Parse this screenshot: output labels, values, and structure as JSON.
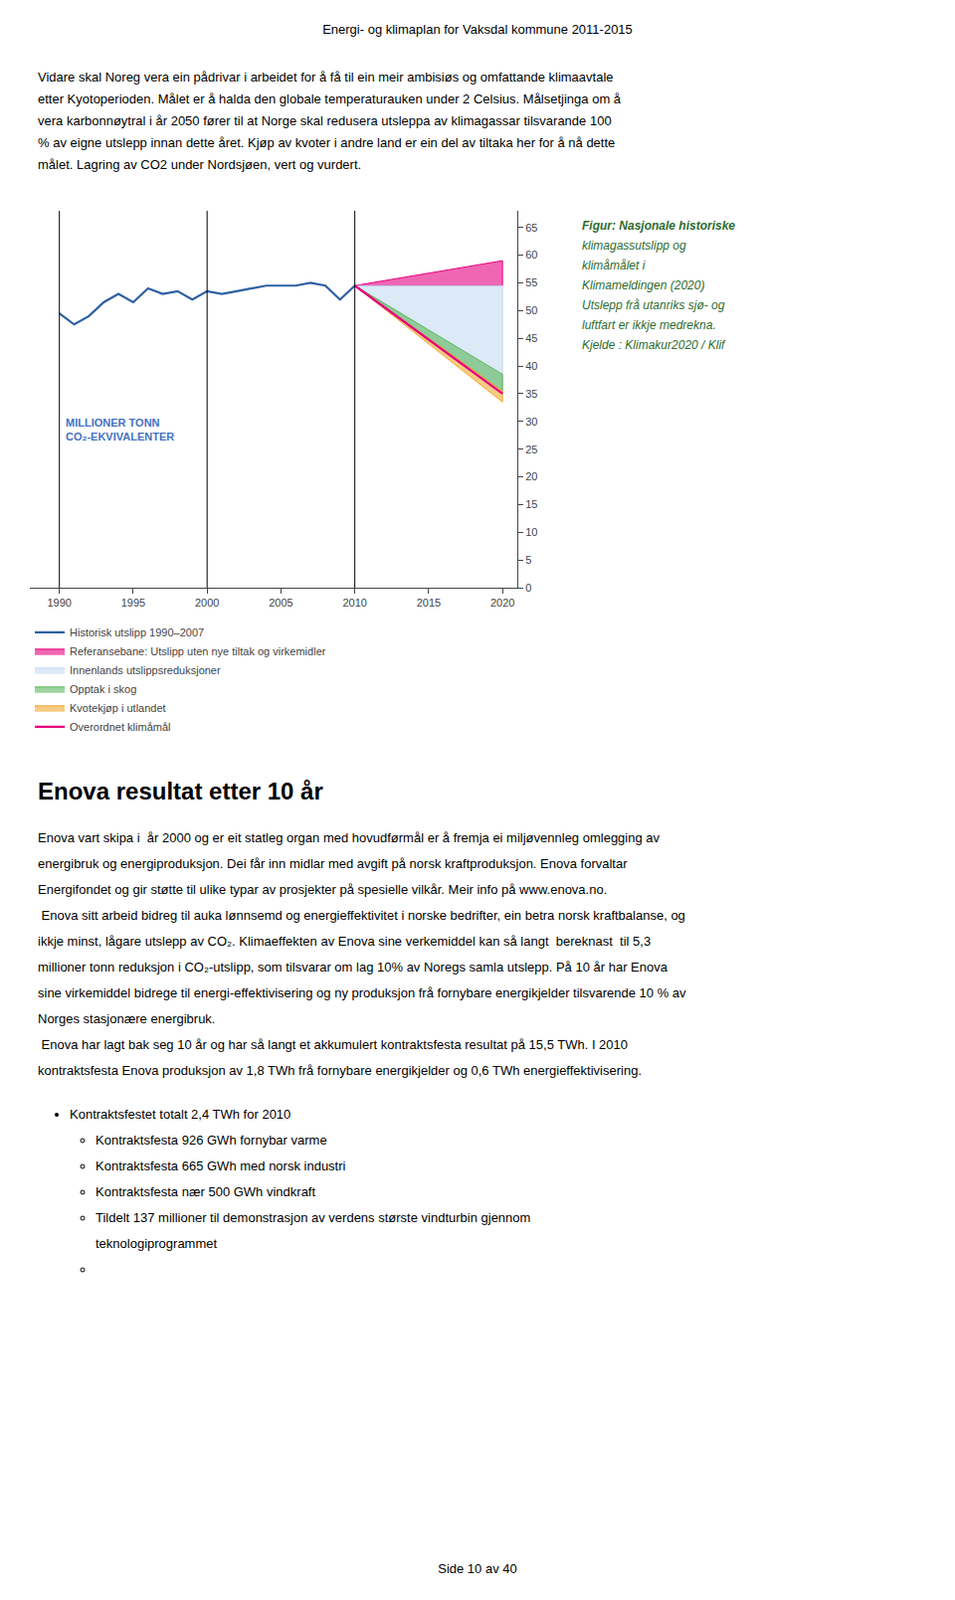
{
  "page_title": "Energi- og klimaplan for Vaksdal kommune 2011-2015",
  "paragraph_lines": [
    "Vidare skal Noreg vera ein pådrivar i arbeidet for å få til ein meir ambisiøs og omfattande klimaavtale",
    "etter Kyotoperioden. Målet er å halda den globale temperaturauken under 2 Celsius. Målsetjinga om å",
    "vera karbonnøytral i år 2050 fører til at Norge skal redusera utsleppa av klimagassar tilsvarande 100",
    "% av eigne utslepp innan dette året. Kjøp av kvoter i andre land er ein del av tiltaka her for å nå dette",
    "målet. Lagring av CO2 under Nordsjøen, vert og vurdert."
  ],
  "chart_data": {
    "type": "line",
    "series": [
      {
        "name": "Historisk utslipp 1990–2007",
        "type": "line",
        "color": "#2e5fa3",
        "x": [
          1990,
          1991,
          1992,
          1993,
          1994,
          1995,
          1996,
          1997,
          1998,
          1999,
          2000,
          2001,
          2002,
          2003,
          2004,
          2005,
          2006,
          2007,
          2008,
          2009,
          2010
        ],
        "values": [
          49.5,
          47.5,
          49.0,
          51.5,
          53.0,
          51.5,
          54.0,
          53.0,
          53.5,
          52.0,
          53.5,
          53.0,
          53.5,
          54.0,
          54.5,
          54.5,
          54.5,
          55.0,
          54.5,
          52.0,
          54.5
        ]
      },
      {
        "name": "Referansebane: Utslipp uten nye tiltak og virkemidler",
        "type": "area",
        "color": "#e6007e",
        "x": [
          2010,
          2020
        ],
        "values": [
          54.5,
          59.0
        ],
        "base": [
          54.5,
          54.5
        ]
      },
      {
        "name": "Innenlands utslippsreduksjoner",
        "type": "area",
        "color": "#c5daf0",
        "x": [
          2010,
          2020
        ],
        "values": [
          54.5,
          54.5
        ],
        "base": [
          54.5,
          35.0
        ]
      },
      {
        "name": "Opptak i skog",
        "type": "area",
        "color": "#5cb85c",
        "x": [
          2010,
          2020
        ],
        "values": [
          54.5,
          38.5
        ],
        "base": [
          54.5,
          35.5
        ]
      },
      {
        "name": "Kvotekjøp i utlandet",
        "type": "area",
        "color": "#f0a830",
        "x": [
          2010,
          2020
        ],
        "values": [
          54.5,
          35.5
        ],
        "base": [
          54.5,
          33.5
        ]
      },
      {
        "name": "Overordnet klimåmål",
        "type": "line",
        "color": "#e6007e",
        "x": [
          2010,
          2020
        ],
        "values": [
          54.5,
          35.0
        ]
      }
    ],
    "xlim": [
      1988,
      2021
    ],
    "xticks": [
      1990,
      1995,
      2000,
      2005,
      2010,
      2015,
      2020
    ],
    "ylim": [
      0,
      68
    ],
    "yticks": [
      0,
      5,
      10,
      15,
      20,
      25,
      30,
      35,
      40,
      45,
      50,
      55,
      60,
      65
    ],
    "grid": false,
    "legend": "bottom",
    "vlines": [
      1990,
      2000,
      2010
    ],
    "annotations": [
      {
        "text": [
          "MILLIONER TONN",
          "CO₂-EKVIVALENTER"
        ],
        "color": "#4472c4"
      }
    ],
    "caption": [
      "Figur: Nasjonale historiske",
      "klimagassutslipp og",
      "klimåmålet i",
      "Klimameldingen (2020)",
      "Utslepp frå utanriks sjø- og",
      "luftfart er ikkje medrekna.",
      "Kjelde : Klimakur2020 / Klif"
    ],
    "caption_color": "#2e6b2e"
  },
  "section_title": "Enova resultat  etter 10 år",
  "body_lines": [
    "Enova vart skipa i  år 2000 og er eit statleg organ med hovudførmål er å fremja ei miljøvennleg omlegging av",
    "energibruk og energiproduksjon. Dei får inn midlar med avgift på norsk kraftproduksjon. Enova forvaltar",
    "Energifondet og gir støtte til ulike typar av prosjekter på spesielle vilkår. Meir info på www.enova.no.",
    " Enova sitt arbeid bidreg til auka lønnsemd og energieffektivitet i norske bedrifter, ein betra norsk kraftbalanse, og",
    "ikkje minst, lågare utslepp av CO₂. Klimaeffekten av Enova sine verkemiddel kan så langt  bereknast  til 5,3",
    "millioner tonn reduksjon i CO₂-utslipp, som tilsvarar om lag 10% av Noregs samla utslepp. På 10 år har Enova",
    "sine virkemiddel bidrege til energi-effektivisering og ny produksjon frå fornybare energikjelder tilsvarende 10 % av",
    "Norges stasjonære energibruk.",
    " Enova har lagt bak seg 10 år og har så langt et akkumulert kontraktsfesta resultat på 15,5 TWh. I 2010",
    "kontraktsfesta Enova produksjon av 1,8 TWh frå fornybare energikjelder og 0,6 TWh energieffektivisering."
  ],
  "bullets": {
    "text": "Kontraktsfestet totalt 2,4 TWh for 2010",
    "sub": [
      [
        "Kontraktsfesta 926 GWh fornybar varme"
      ],
      [
        "Kontraktsfesta 665 GWh med norsk industri"
      ],
      [
        "Kontraktsfesta nær 500 GWh vindkraft"
      ],
      [
        "Tildelt 137 millioner til demonstrasjon av verdens største vindturbin gjennom",
        "teknologiprogrammet"
      ],
      []
    ]
  },
  "page_number": "Side 10 av 40"
}
